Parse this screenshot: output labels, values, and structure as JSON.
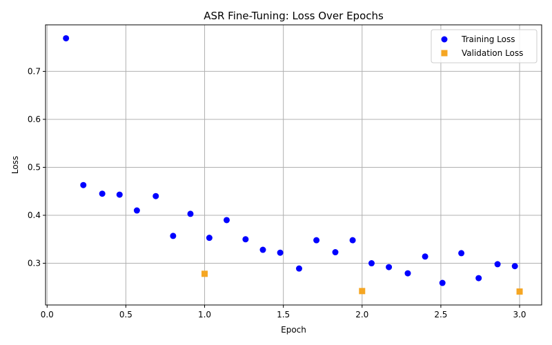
{
  "chart_data": {
    "type": "scatter",
    "title": "ASR Fine-Tuning: Loss Over Epochs",
    "xlabel": "Epoch",
    "ylabel": "Loss",
    "xlim": [
      -0.01,
      3.14
    ],
    "ylim": [
      0.213,
      0.797
    ],
    "xticks": [
      0.0,
      0.5,
      1.0,
      1.5,
      2.0,
      2.5,
      3.0
    ],
    "xtick_labels": [
      "0.0",
      "0.5",
      "1.0",
      "1.5",
      "2.0",
      "2.5",
      "3.0"
    ],
    "yticks": [
      0.3,
      0.4,
      0.5,
      0.6,
      0.7
    ],
    "ytick_labels": [
      "0.3",
      "0.4",
      "0.5",
      "0.6",
      "0.7"
    ],
    "grid": true,
    "legend_position": "top-right",
    "series": [
      {
        "name": "Training Loss",
        "marker": "circle",
        "color": "#0000ff",
        "x": [
          0.12,
          0.23,
          0.35,
          0.46,
          0.57,
          0.69,
          0.8,
          0.91,
          1.03,
          1.14,
          1.26,
          1.37,
          1.48,
          1.6,
          1.71,
          1.83,
          1.94,
          2.06,
          2.17,
          2.29,
          2.4,
          2.51,
          2.63,
          2.74,
          2.86,
          2.97
        ],
        "y": [
          0.769,
          0.463,
          0.445,
          0.443,
          0.41,
          0.44,
          0.357,
          0.403,
          0.353,
          0.39,
          0.35,
          0.328,
          0.322,
          0.289,
          0.348,
          0.323,
          0.348,
          0.3,
          0.292,
          0.279,
          0.314,
          0.259,
          0.321,
          0.269,
          0.298,
          0.294
        ]
      },
      {
        "name": "Validation Loss",
        "marker": "square",
        "color": "#f5a623",
        "x": [
          1.0,
          2.0,
          3.0
        ],
        "y": [
          0.278,
          0.242,
          0.241
        ]
      }
    ]
  }
}
